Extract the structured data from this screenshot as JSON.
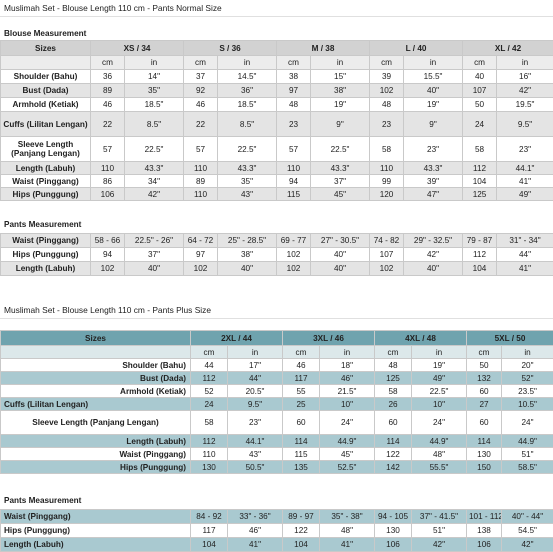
{
  "normal": {
    "title": "Muslimah Set - Blouse Length 110 cm - Pants Normal Size",
    "blouse_heading": "Blouse Measurement",
    "sizes_label": "Sizes",
    "sizes": [
      "XS / 34",
      "S / 36",
      "M / 38",
      "L / 40",
      "XL / 42"
    ],
    "units": [
      "cm",
      "in",
      "cm",
      "in",
      "cm",
      "in",
      "cm",
      "in",
      "cm",
      "in"
    ],
    "blouse_rows": [
      {
        "label": "Shoulder (Bahu)",
        "values": [
          "36",
          "14\"",
          "37",
          "14.5\"",
          "38",
          "15\"",
          "39",
          "15.5\"",
          "40",
          "16\""
        ]
      },
      {
        "label": "Bust (Dada)",
        "values": [
          "89",
          "35\"",
          "92",
          "36\"",
          "97",
          "38\"",
          "102",
          "40\"",
          "107",
          "42\""
        ]
      },
      {
        "label": "Armhold (Ketiak)",
        "values": [
          "46",
          "18.5\"",
          "46",
          "18.5\"",
          "48",
          "19\"",
          "48",
          "19\"",
          "50",
          "19.5\""
        ]
      },
      {
        "label": "Cuffs (Lilitan Lengan)",
        "values": [
          "22",
          "8.5\"",
          "22",
          "8.5\"",
          "23",
          "9\"",
          "23",
          "9\"",
          "24",
          "9.5\""
        ]
      },
      {
        "label": "Sleeve Length (Panjang Lengan)",
        "values": [
          "57",
          "22.5\"",
          "57",
          "22.5\"",
          "57",
          "22.5\"",
          "58",
          "23\"",
          "58",
          "23\""
        ]
      },
      {
        "label": "Length (Labuh)",
        "values": [
          "110",
          "43.3\"",
          "110",
          "43.3\"",
          "110",
          "43.3\"",
          "110",
          "43.3\"",
          "112",
          "44.1\""
        ]
      },
      {
        "label": "Waist (Pinggang)",
        "values": [
          "86",
          "34\"",
          "89",
          "35\"",
          "94",
          "37\"",
          "99",
          "39\"",
          "104",
          "41\""
        ]
      },
      {
        "label": "Hips (Punggung)",
        "values": [
          "106",
          "42\"",
          "110",
          "43\"",
          "115",
          "45\"",
          "120",
          "47\"",
          "125",
          "49\""
        ]
      }
    ],
    "pants_heading": "Pants Measurement",
    "pants_rows": [
      {
        "label": "Waist (Pinggang)",
        "values": [
          "58 - 66",
          "22.5\" - 26\"",
          "64 - 72",
          "25\" - 28.5\"",
          "69 - 77",
          "27\" - 30.5\"",
          "74 - 82",
          "29\" - 32.5\"",
          "79 - 87",
          "31\" - 34\""
        ]
      },
      {
        "label": "Hips (Punggung)",
        "values": [
          "94",
          "37\"",
          "97",
          "38\"",
          "102",
          "40\"",
          "107",
          "42\"",
          "112",
          "44\""
        ]
      },
      {
        "label": "Length (Labuh)",
        "values": [
          "102",
          "40\"",
          "102",
          "40\"",
          "102",
          "40\"",
          "102",
          "40\"",
          "104",
          "41\""
        ]
      }
    ]
  },
  "plus": {
    "title": "Muslimah Set - Blouse Length 110 cm - Pants Plus Size",
    "sizes_label": "Sizes",
    "sizes": [
      "2XL / 44",
      "3XL / 46",
      "4XL / 48",
      "5XL / 50"
    ],
    "units": [
      "cm",
      "in",
      "cm",
      "in",
      "cm",
      "in",
      "cm",
      "in"
    ],
    "blouse_rows": [
      {
        "label": "Shoulder (Bahu)",
        "values": [
          "44",
          "17\"",
          "46",
          "18\"",
          "48",
          "19\"",
          "50",
          "20\""
        ]
      },
      {
        "label": "Bust (Dada)",
        "values": [
          "112",
          "44\"",
          "117",
          "46\"",
          "125",
          "49\"",
          "132",
          "52\""
        ]
      },
      {
        "label": "Armhold (Ketiak)",
        "values": [
          "52",
          "20.5\"",
          "55",
          "21.5\"",
          "58",
          "22.5\"",
          "60",
          "23.5\""
        ]
      },
      {
        "label": "Cuffs (Lilitan Lengan)",
        "values": [
          "24",
          "9.5\"",
          "25",
          "10\"",
          "26",
          "10\"",
          "27",
          "10.5\""
        ]
      },
      {
        "label": "Sleeve Length (Panjang Lengan)",
        "values": [
          "58",
          "23\"",
          "60",
          "24\"",
          "60",
          "24\"",
          "60",
          "24\""
        ]
      },
      {
        "label": "Length (Labuh)",
        "values": [
          "112",
          "44.1\"",
          "114",
          "44.9\"",
          "114",
          "44.9\"",
          "114",
          "44.9\""
        ]
      },
      {
        "label": "Waist (Pinggang)",
        "values": [
          "110",
          "43\"",
          "115",
          "45\"",
          "122",
          "48\"",
          "130",
          "51\""
        ]
      },
      {
        "label": "Hips (Punggung)",
        "values": [
          "130",
          "50.5\"",
          "135",
          "52.5\"",
          "142",
          "55.5\"",
          "150",
          "58.5\""
        ]
      }
    ],
    "pants_heading": "Pants Measurement",
    "pants_rows": [
      {
        "label": "Waist (Pinggang)",
        "values": [
          "84 - 92",
          "33\" - 36\"",
          "89 - 97",
          "35\" - 38\"",
          "94 - 105",
          "37\" - 41.5\"",
          "101 - 112",
          "40\" - 44\""
        ]
      },
      {
        "label": "Hips (Punggung)",
        "values": [
          "117",
          "46\"",
          "122",
          "48\"",
          "130",
          "51\"",
          "138",
          "54.5\""
        ]
      },
      {
        "label": "Length (Labuh)",
        "values": [
          "104",
          "41\"",
          "104",
          "41\"",
          "106",
          "42\"",
          "106",
          "42\""
        ]
      }
    ]
  }
}
